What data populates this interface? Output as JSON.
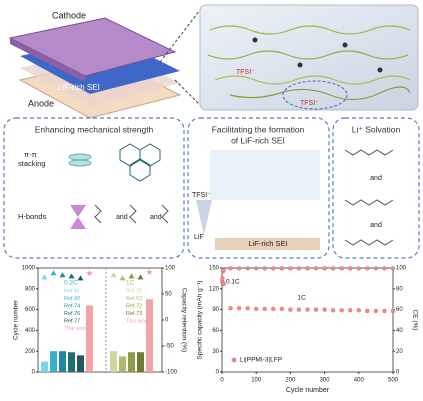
{
  "illustration": {
    "cathode": "Cathode",
    "sei": "LiF-rich SEI",
    "anode": "Anode",
    "anion_labels": [
      "TFSI⁻",
      "TFSI⁻"
    ]
  },
  "panels": [
    {
      "title": [
        "Enhancing mechanical strength"
      ],
      "labels": [
        "π-π",
        "stacking",
        "H-bonds",
        "and",
        "and"
      ]
    },
    {
      "title": [
        "Facilitating the formation",
        "of LiF-rich SEI"
      ],
      "labels": [
        "TFSI⁻",
        "LiF",
        "LiF-rich SEI"
      ]
    },
    {
      "title": [
        "Li⁺ Solvation"
      ],
      "labels": [
        "and",
        "and"
      ]
    }
  ],
  "chart_data": [
    {
      "type": "bar",
      "y_label": "Cycle number",
      "y2_label": "Capacity retention (%)",
      "ylim": [
        0,
        1000
      ],
      "yticks": [
        0,
        200,
        400,
        600,
        800,
        1000
      ],
      "y2lim": [
        -100,
        100
      ],
      "y2ticks": [
        -100,
        -50,
        0,
        50,
        100
      ],
      "groups": [
        {
          "label": "0.2C",
          "categories": [
            "Ref.61",
            "Ref.60",
            "Ref.74",
            "Ref.76",
            "Ref.77",
            "This work"
          ],
          "values": [
            100,
            200,
            200,
            190,
            160,
            640
          ],
          "retention": [
            82,
            90,
            86,
            84,
            80,
            90
          ],
          "colors": [
            "#7fd3e6",
            "#3ab0cf",
            "#1f86a8",
            "#1d6f70",
            "#24585c",
            "#f2a3a3"
          ]
        },
        {
          "label": "1C",
          "categories": [
            "Ref.75",
            "Ref.63",
            "Ref.72",
            "Ref.73",
            "This work"
          ],
          "values": [
            200,
            150,
            190,
            190,
            700
          ],
          "retention": [
            86,
            80,
            84,
            82,
            92
          ],
          "colors": [
            "#cdd79f",
            "#adbc6c",
            "#8d9c4b",
            "#6e7d35",
            "#f2a3a3"
          ]
        }
      ]
    },
    {
      "type": "scatter",
      "x_label": "Cycle number",
      "y_label": "Specific capacity (mAh g⁻¹)",
      "y2_label": "CE (%)",
      "x": [
        1,
        3,
        5,
        25,
        50,
        75,
        100,
        125,
        150,
        175,
        200,
        225,
        250,
        275,
        300,
        325,
        350,
        375,
        400,
        425,
        450,
        475,
        500
      ],
      "xlim": [
        0,
        500
      ],
      "xticks": [
        0,
        100,
        200,
        300,
        400,
        500
      ],
      "ylim": [
        0,
        150
      ],
      "yticks": [
        0,
        30,
        60,
        90,
        120,
        150
      ],
      "y2lim": [
        0,
        100
      ],
      "y2ticks": [
        0,
        20,
        40,
        60,
        80,
        100
      ],
      "annotations": [
        "0.1C",
        "1C"
      ],
      "series": [
        {
          "name": "Li|PPMI-3|LFP",
          "color": "#ee8c8c",
          "values": [
            130,
            128,
            127,
            92,
            92,
            92,
            91,
            91,
            91,
            91,
            90,
            90,
            90,
            90,
            90,
            89,
            89,
            89,
            89,
            88,
            88,
            88,
            88
          ]
        },
        {
          "color": "#ee8c8c",
          "axis": "y2",
          "values": [
            90,
            97,
            98,
            99.6,
            99.6,
            99.6,
            99.6,
            99.6,
            99.6,
            99.6,
            99.6,
            99.6,
            99.6,
            99.6,
            99.6,
            99.6,
            99.6,
            99.6,
            99.6,
            99.6,
            99.6,
            99.6,
            99.6
          ]
        }
      ]
    }
  ]
}
